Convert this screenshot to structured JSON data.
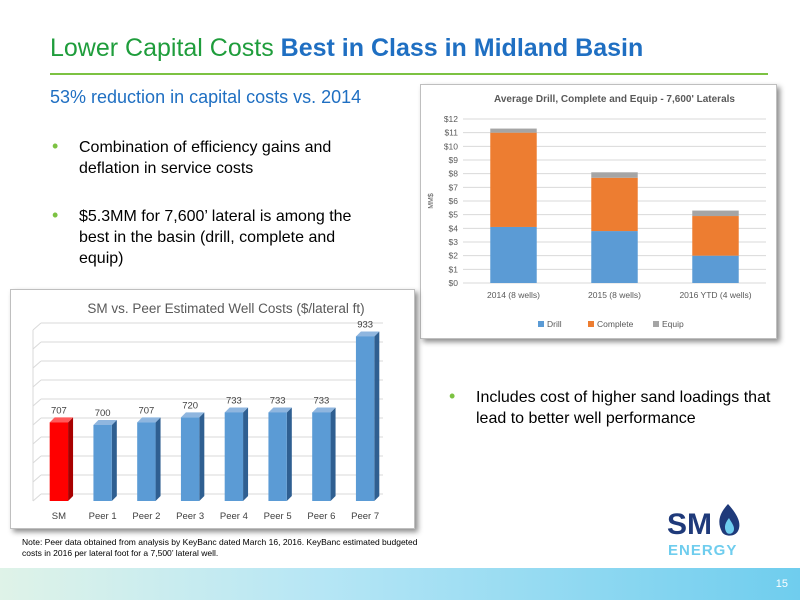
{
  "slide": {
    "title_part1": "Lower Capital Costs ",
    "title_part2": "Best in Class in Midland Basin",
    "subtitle": "53% reduction in capital costs vs. 2014",
    "bullets": [
      "Combination of efficiency gains and deflation in service costs",
      "$5.3MM for 7,600’ lateral is among the best in the basin (drill, complete and equip)",
      "Includes cost of higher sand loadings that lead to better well performance"
    ],
    "note": "Note: Peer data obtained from analysis by KeyBanc dated March 16, 2016. KeyBanc estimated budgeted costs in 2016 per lateral foot for a 7,500’ lateral well.",
    "logo": {
      "top_text": "SM",
      "bottom_text": "ENERGY",
      "icon": "flame-icon"
    },
    "page_number": "15",
    "colors": {
      "title_green": "#1f9d3c",
      "title_blue": "#1f6fc2",
      "rule": "#7cc242"
    }
  },
  "chart_data": [
    {
      "type": "bar",
      "stacked": true,
      "title": "Average Drill, Complete and Equip - 7,600' Laterals",
      "ylabel": "MM$",
      "xlabel": "",
      "categories": [
        "2014 (8 wells)",
        "2015 (8 wells)",
        "2016 YTD (4 wells)"
      ],
      "series": [
        {
          "name": "Drill",
          "values": [
            4.1,
            3.8,
            2.0
          ],
          "color": "#5b9bd5"
        },
        {
          "name": "Complete",
          "values": [
            6.9,
            3.9,
            2.9
          ],
          "color": "#ed7d31"
        },
        {
          "name": "Equip",
          "values": [
            0.3,
            0.4,
            0.4
          ],
          "color": "#a5a5a5"
        }
      ],
      "ylim": [
        0,
        12
      ],
      "yticks": [
        "$0",
        "$1",
        "$2",
        "$3",
        "$4",
        "$5",
        "$6",
        "$7",
        "$8",
        "$9",
        "$10",
        "$11",
        "$12"
      ],
      "grid": true,
      "legend": "bottom"
    },
    {
      "type": "bar",
      "title": "SM vs. Peer Estimated Well Costs ($/lateral ft)",
      "categories": [
        "SM",
        "Peer 1",
        "Peer 2",
        "Peer 3",
        "Peer 4",
        "Peer 5",
        "Peer 6",
        "Peer 7"
      ],
      "values": [
        707,
        700,
        707,
        720,
        733,
        733,
        733,
        933
      ],
      "labels": [
        "707",
        "700",
        "707",
        "720",
        "733",
        "733",
        "733",
        "933"
      ],
      "colors": [
        "#ff0000",
        "#5b9bd5",
        "#5b9bd5",
        "#5b9bd5",
        "#5b9bd5",
        "#5b9bd5",
        "#5b9bd5",
        "#5b9bd5"
      ],
      "ylim": [
        500,
        950
      ],
      "grid": true
    }
  ]
}
